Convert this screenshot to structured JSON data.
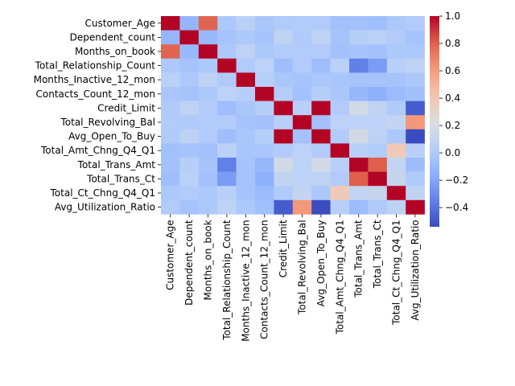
{
  "chart_data": {
    "type": "heatmap",
    "labels": [
      "Customer_Age",
      "Dependent_count",
      "Months_on_book",
      "Total_Relationship_Count",
      "Months_Inactive_12_mon",
      "Contacts_Count_12_mon",
      "Credit_Limit",
      "Total_Revolving_Bal",
      "Avg_Open_To_Buy",
      "Total_Amt_Chng_Q4_Q1",
      "Total_Trans_Amt",
      "Total_Trans_Ct",
      "Total_Ct_Chng_Q4_Q1",
      "Avg_Utilization_Ratio"
    ],
    "matrix": [
      [
        1.0,
        -0.12,
        0.79,
        -0.01,
        0.05,
        -0.02,
        0.0,
        0.01,
        0.0,
        -0.06,
        -0.05,
        -0.07,
        -0.01,
        0.01
      ],
      [
        -0.12,
        1.0,
        -0.1,
        -0.04,
        -0.01,
        -0.04,
        0.07,
        -0.0,
        0.07,
        -0.04,
        0.03,
        0.05,
        0.01,
        -0.04
      ],
      [
        0.79,
        -0.1,
        1.0,
        -0.01,
        0.07,
        -0.01,
        0.01,
        0.01,
        0.01,
        -0.05,
        -0.04,
        -0.05,
        -0.01,
        -0.01
      ],
      [
        -0.01,
        -0.04,
        -0.01,
        1.0,
        -0.0,
        0.06,
        -0.07,
        0.01,
        -0.07,
        0.05,
        -0.35,
        -0.24,
        0.04,
        0.07
      ],
      [
        0.05,
        -0.01,
        0.07,
        -0.0,
        1.0,
        0.03,
        -0.02,
        -0.04,
        -0.02,
        -0.03,
        -0.04,
        -0.04,
        -0.04,
        -0.01
      ],
      [
        -0.02,
        -0.04,
        -0.01,
        0.06,
        0.03,
        1.0,
        0.02,
        -0.05,
        0.03,
        -0.02,
        -0.11,
        -0.15,
        -0.09,
        -0.06
      ],
      [
        0.0,
        0.07,
        0.01,
        -0.07,
        -0.02,
        0.02,
        1.0,
        0.04,
        1.0,
        0.01,
        0.17,
        0.08,
        -0.0,
        -0.48
      ],
      [
        0.01,
        -0.0,
        0.01,
        0.01,
        -0.04,
        -0.05,
        0.04,
        1.0,
        -0.05,
        0.06,
        0.06,
        0.06,
        0.09,
        0.62
      ],
      [
        0.0,
        0.07,
        0.01,
        -0.07,
        -0.02,
        0.03,
        1.0,
        -0.05,
        1.0,
        0.01,
        0.17,
        0.07,
        -0.01,
        -0.54
      ],
      [
        -0.06,
        -0.04,
        -0.05,
        0.05,
        -0.03,
        -0.02,
        0.01,
        0.06,
        0.01,
        1.0,
        0.04,
        0.01,
        0.38,
        0.04
      ],
      [
        -0.05,
        0.03,
        -0.04,
        -0.35,
        -0.04,
        -0.11,
        0.17,
        0.06,
        0.17,
        0.04,
        1.0,
        0.81,
        0.09,
        -0.08
      ],
      [
        -0.07,
        0.05,
        -0.05,
        -0.24,
        -0.04,
        -0.15,
        0.08,
        0.06,
        0.07,
        0.01,
        0.81,
        1.0,
        0.11,
        0.0
      ],
      [
        -0.01,
        0.01,
        -0.01,
        0.04,
        -0.04,
        -0.09,
        -0.0,
        0.09,
        -0.01,
        0.38,
        0.09,
        0.11,
        1.0,
        0.07
      ],
      [
        0.01,
        -0.04,
        -0.01,
        0.07,
        -0.01,
        -0.06,
        -0.48,
        0.62,
        -0.54,
        0.04,
        -0.08,
        0.0,
        0.07,
        1.0
      ]
    ],
    "colorbar": {
      "min": -0.54,
      "max": 1.0,
      "ticks": [
        -0.4,
        -0.2,
        0.0,
        0.2,
        0.4,
        0.6,
        0.8,
        1.0
      ],
      "tick_labels": [
        "−0.4",
        "−0.2",
        "0.0",
        "0.2",
        "0.4",
        "0.6",
        "0.8",
        "1.0"
      ]
    },
    "colormap": "coolwarm",
    "title": "",
    "xlabel": "",
    "ylabel": ""
  }
}
